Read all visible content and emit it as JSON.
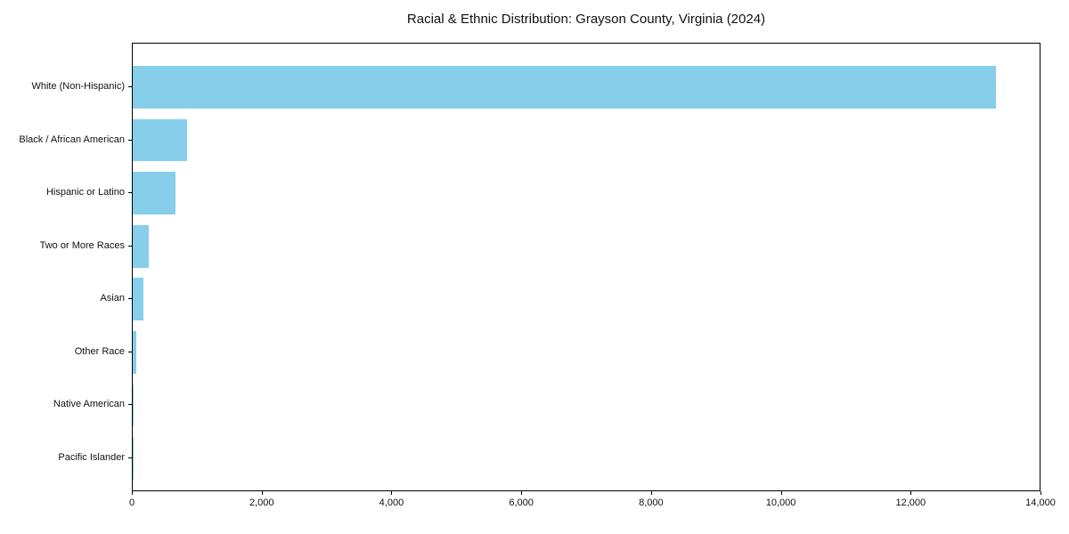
{
  "chart_data": {
    "type": "bar",
    "orientation": "horizontal",
    "title": "Racial & Ethnic Distribution: Grayson County, Virginia (2024)",
    "categories": [
      "White (Non-Hispanic)",
      "Black / African American",
      "Hispanic or Latino",
      "Two or More Races",
      "Asian",
      "Other Race",
      "Native American",
      "Pacific Islander"
    ],
    "values": [
      13320,
      840,
      655,
      250,
      165,
      60,
      20,
      8
    ],
    "xlabel": "",
    "ylabel": "",
    "xlim": [
      0,
      14000
    ],
    "xtick_values": [
      0,
      2000,
      4000,
      6000,
      8000,
      10000,
      12000,
      14000
    ],
    "xtick_labels": [
      "0",
      "2,000",
      "4,000",
      "6,000",
      "8,000",
      "10,000",
      "12,000",
      "14,000"
    ],
    "bar_color": "#87CEEB",
    "grid": false,
    "legend": "none"
  }
}
